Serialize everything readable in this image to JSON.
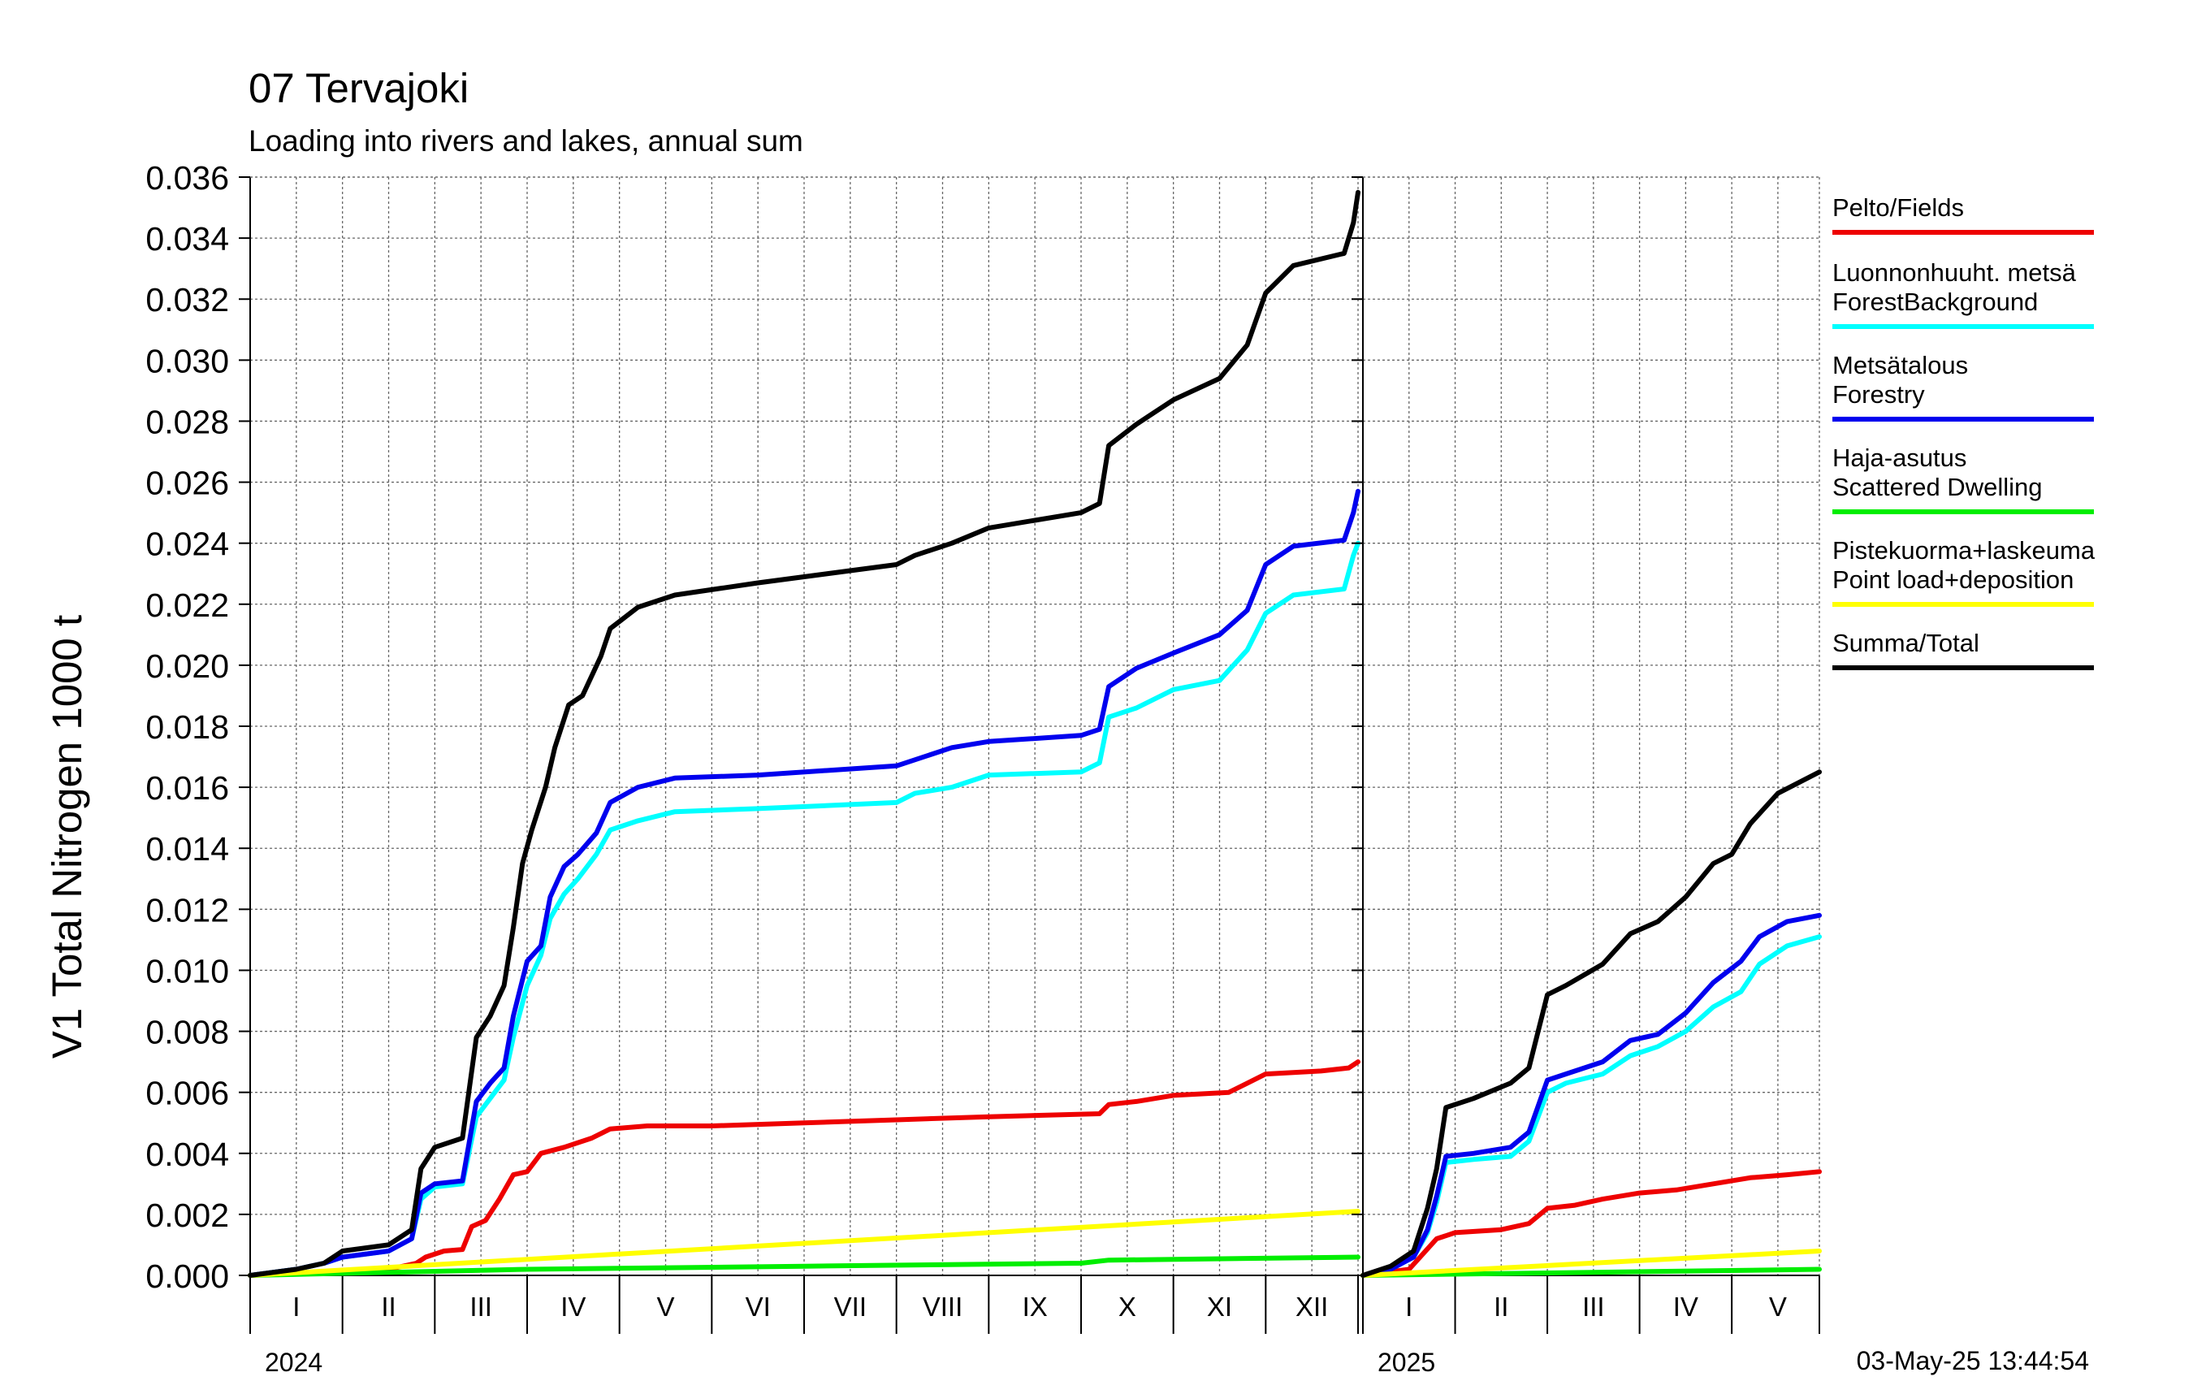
{
  "chart_data": {
    "type": "line",
    "title": "07 Tervajoki",
    "subtitle": "Loading into rivers and lakes, annual sum",
    "ylabel": "V1 Total Nitrogen 1000 t",
    "timestamp": "03-May-25 13:44:54",
    "ylim": [
      0.0,
      0.036
    ],
    "y_ticks": [
      "0.000",
      "0.002",
      "0.004",
      "0.006",
      "0.008",
      "0.010",
      "0.012",
      "0.014",
      "0.016",
      "0.018",
      "0.020",
      "0.022",
      "0.024",
      "0.026",
      "0.028",
      "0.030",
      "0.032",
      "0.034",
      "0.036"
    ],
    "grid": true,
    "legend_position": "right",
    "panels": [
      {
        "year": "2024",
        "months": [
          "I",
          "II",
          "III",
          "IV",
          "V",
          "VI",
          "VII",
          "VIII",
          "IX",
          "X",
          "XI",
          "XII"
        ],
        "x_unit": "month",
        "xlim": [
          0,
          12
        ]
      },
      {
        "year": "2025",
        "months": [
          "I",
          "II",
          "III",
          "IV",
          "V"
        ],
        "x_unit": "month",
        "xlim": [
          0,
          4.95
        ]
      }
    ],
    "series": [
      {
        "name": "Pelto/Fields",
        "color": "#ee0000",
        "data_2024": [
          [
            0,
            0
          ],
          [
            1.5,
            0.0002
          ],
          [
            1.8,
            0.0004
          ],
          [
            1.9,
            0.0006
          ],
          [
            2.1,
            0.0008
          ],
          [
            2.3,
            0.00085
          ],
          [
            2.4,
            0.0016
          ],
          [
            2.55,
            0.0018
          ],
          [
            2.7,
            0.0025
          ],
          [
            2.85,
            0.0033
          ],
          [
            3.0,
            0.0034
          ],
          [
            3.15,
            0.004
          ],
          [
            3.4,
            0.0042
          ],
          [
            3.7,
            0.0045
          ],
          [
            3.9,
            0.0048
          ],
          [
            4.3,
            0.0049
          ],
          [
            5.0,
            0.0049
          ],
          [
            6.0,
            0.005
          ],
          [
            7.0,
            0.0051
          ],
          [
            8.0,
            0.0052
          ],
          [
            9.2,
            0.0053
          ],
          [
            9.3,
            0.0056
          ],
          [
            9.6,
            0.0057
          ],
          [
            10.0,
            0.0059
          ],
          [
            10.6,
            0.006
          ],
          [
            10.8,
            0.0063
          ],
          [
            11.0,
            0.0066
          ],
          [
            11.6,
            0.0067
          ],
          [
            11.9,
            0.0068
          ],
          [
            12.0,
            0.007
          ]
        ],
        "data_2025": [
          [
            0,
            0
          ],
          [
            0.5,
            0.0002
          ],
          [
            0.8,
            0.0012
          ],
          [
            1.0,
            0.0014
          ],
          [
            1.5,
            0.0015
          ],
          [
            1.8,
            0.0017
          ],
          [
            2.0,
            0.0022
          ],
          [
            2.3,
            0.0023
          ],
          [
            2.6,
            0.0025
          ],
          [
            3.0,
            0.0027
          ],
          [
            3.4,
            0.0028
          ],
          [
            3.8,
            0.003
          ],
          [
            4.2,
            0.0032
          ],
          [
            4.6,
            0.0033
          ],
          [
            4.95,
            0.0034
          ]
        ]
      },
      {
        "name": "Luonnonhuuht. metsä ForestBackground",
        "color": "#00ffff",
        "data_2024": [
          [
            0,
            0
          ],
          [
            0.5,
            0.0002
          ],
          [
            0.8,
            0.0004
          ],
          [
            1.0,
            0.0006
          ],
          [
            1.5,
            0.0008
          ],
          [
            1.75,
            0.0012
          ],
          [
            1.85,
            0.0025
          ],
          [
            2.0,
            0.0029
          ],
          [
            2.3,
            0.003
          ],
          [
            2.45,
            0.0052
          ],
          [
            2.6,
            0.0058
          ],
          [
            2.75,
            0.0064
          ],
          [
            2.85,
            0.0078
          ],
          [
            3.0,
            0.0095
          ],
          [
            3.15,
            0.0105
          ],
          [
            3.25,
            0.0117
          ],
          [
            3.4,
            0.0125
          ],
          [
            3.55,
            0.013
          ],
          [
            3.75,
            0.0138
          ],
          [
            3.9,
            0.0146
          ],
          [
            4.2,
            0.0149
          ],
          [
            4.6,
            0.0152
          ],
          [
            5.5,
            0.0153
          ],
          [
            7.0,
            0.0155
          ],
          [
            7.2,
            0.0158
          ],
          [
            7.6,
            0.016
          ],
          [
            8.0,
            0.0164
          ],
          [
            9.0,
            0.0165
          ],
          [
            9.2,
            0.0168
          ],
          [
            9.3,
            0.0183
          ],
          [
            9.6,
            0.0186
          ],
          [
            10.0,
            0.0192
          ],
          [
            10.5,
            0.0195
          ],
          [
            10.8,
            0.0205
          ],
          [
            11.0,
            0.0217
          ],
          [
            11.3,
            0.0223
          ],
          [
            11.85,
            0.0225
          ],
          [
            11.95,
            0.0236
          ],
          [
            12.0,
            0.024
          ]
        ],
        "data_2025": [
          [
            0,
            0
          ],
          [
            0.3,
            0.0002
          ],
          [
            0.55,
            0.0006
          ],
          [
            0.7,
            0.0014
          ],
          [
            0.8,
            0.0024
          ],
          [
            0.9,
            0.0037
          ],
          [
            1.2,
            0.0038
          ],
          [
            1.6,
            0.0039
          ],
          [
            1.8,
            0.0044
          ],
          [
            2.0,
            0.006
          ],
          [
            2.2,
            0.0063
          ],
          [
            2.6,
            0.0066
          ],
          [
            2.9,
            0.0072
          ],
          [
            3.2,
            0.0075
          ],
          [
            3.5,
            0.008
          ],
          [
            3.8,
            0.0088
          ],
          [
            4.1,
            0.0093
          ],
          [
            4.3,
            0.0102
          ],
          [
            4.6,
            0.0108
          ],
          [
            4.95,
            0.0111
          ]
        ]
      },
      {
        "name": "Metsätalous Forestry",
        "color": "#0000ee",
        "data_2024": [
          [
            0,
            0
          ],
          [
            0.5,
            0.0002
          ],
          [
            0.8,
            0.0004
          ],
          [
            1.0,
            0.0006
          ],
          [
            1.5,
            0.0008
          ],
          [
            1.75,
            0.0012
          ],
          [
            1.85,
            0.0027
          ],
          [
            2.0,
            0.003
          ],
          [
            2.3,
            0.0031
          ],
          [
            2.45,
            0.0057
          ],
          [
            2.6,
            0.0063
          ],
          [
            2.75,
            0.0068
          ],
          [
            2.85,
            0.0085
          ],
          [
            3.0,
            0.0103
          ],
          [
            3.15,
            0.0108
          ],
          [
            3.25,
            0.0124
          ],
          [
            3.4,
            0.0134
          ],
          [
            3.55,
            0.0138
          ],
          [
            3.75,
            0.0145
          ],
          [
            3.9,
            0.0155
          ],
          [
            4.2,
            0.016
          ],
          [
            4.6,
            0.0163
          ],
          [
            5.5,
            0.0164
          ],
          [
            7.0,
            0.0167
          ],
          [
            7.2,
            0.0169
          ],
          [
            7.6,
            0.0173
          ],
          [
            8.0,
            0.0175
          ],
          [
            9.0,
            0.0177
          ],
          [
            9.2,
            0.0179
          ],
          [
            9.3,
            0.0193
          ],
          [
            9.6,
            0.0199
          ],
          [
            10.0,
            0.0204
          ],
          [
            10.5,
            0.021
          ],
          [
            10.8,
            0.0218
          ],
          [
            11.0,
            0.0233
          ],
          [
            11.3,
            0.0239
          ],
          [
            11.85,
            0.0241
          ],
          [
            11.95,
            0.025
          ],
          [
            12.0,
            0.0257
          ]
        ],
        "data_2025": [
          [
            0,
            0
          ],
          [
            0.3,
            0.0002
          ],
          [
            0.55,
            0.0006
          ],
          [
            0.7,
            0.0015
          ],
          [
            0.8,
            0.0026
          ],
          [
            0.9,
            0.0039
          ],
          [
            1.2,
            0.004
          ],
          [
            1.6,
            0.0042
          ],
          [
            1.8,
            0.0047
          ],
          [
            2.0,
            0.0064
          ],
          [
            2.2,
            0.0066
          ],
          [
            2.6,
            0.007
          ],
          [
            2.9,
            0.0077
          ],
          [
            3.2,
            0.0079
          ],
          [
            3.5,
            0.0086
          ],
          [
            3.8,
            0.0096
          ],
          [
            4.1,
            0.0103
          ],
          [
            4.3,
            0.0111
          ],
          [
            4.6,
            0.0116
          ],
          [
            4.95,
            0.0118
          ]
        ]
      },
      {
        "name": "Haja-asutus Scattered Dwelling",
        "color": "#00ee00",
        "data_2024": [
          [
            0,
            0
          ],
          [
            3.0,
            0.0002
          ],
          [
            6.0,
            0.0003
          ],
          [
            9.0,
            0.0004
          ],
          [
            9.3,
            0.0005
          ],
          [
            12.0,
            0.0006
          ]
        ],
        "data_2025": [
          [
            0,
            0
          ],
          [
            2.5,
            0.0001
          ],
          [
            4.95,
            0.0002
          ]
        ]
      },
      {
        "name": "Pistekuorma+laskeuma Point load+deposition",
        "color": "#ffff00",
        "data_2024": [
          [
            0,
            0
          ],
          [
            12.0,
            0.0021
          ]
        ],
        "data_2025": [
          [
            0,
            0
          ],
          [
            4.95,
            0.0008
          ]
        ]
      },
      {
        "name": "Summa/Total",
        "color": "#000000",
        "data_2024": [
          [
            0,
            0
          ],
          [
            0.5,
            0.0002
          ],
          [
            0.8,
            0.0004
          ],
          [
            1.0,
            0.0008
          ],
          [
            1.5,
            0.001
          ],
          [
            1.75,
            0.0015
          ],
          [
            1.85,
            0.0035
          ],
          [
            2.0,
            0.0042
          ],
          [
            2.3,
            0.0045
          ],
          [
            2.45,
            0.0078
          ],
          [
            2.6,
            0.0085
          ],
          [
            2.75,
            0.0095
          ],
          [
            2.85,
            0.0114
          ],
          [
            2.95,
            0.0135
          ],
          [
            3.05,
            0.0146
          ],
          [
            3.2,
            0.016
          ],
          [
            3.3,
            0.0173
          ],
          [
            3.45,
            0.0187
          ],
          [
            3.6,
            0.019
          ],
          [
            3.8,
            0.0203
          ],
          [
            3.9,
            0.0212
          ],
          [
            4.2,
            0.0219
          ],
          [
            4.6,
            0.0223
          ],
          [
            5.5,
            0.0227
          ],
          [
            7.0,
            0.0233
          ],
          [
            7.2,
            0.0236
          ],
          [
            7.6,
            0.024
          ],
          [
            8.0,
            0.0245
          ],
          [
            9.0,
            0.025
          ],
          [
            9.2,
            0.0253
          ],
          [
            9.3,
            0.0272
          ],
          [
            9.6,
            0.0279
          ],
          [
            10.0,
            0.0287
          ],
          [
            10.5,
            0.0294
          ],
          [
            10.8,
            0.0305
          ],
          [
            11.0,
            0.0322
          ],
          [
            11.3,
            0.0331
          ],
          [
            11.85,
            0.0335
          ],
          [
            11.95,
            0.0345
          ],
          [
            12.0,
            0.0355
          ]
        ],
        "data_2025": [
          [
            0,
            0
          ],
          [
            0.3,
            0.0003
          ],
          [
            0.55,
            0.0008
          ],
          [
            0.7,
            0.0022
          ],
          [
            0.8,
            0.0035
          ],
          [
            0.9,
            0.0055
          ],
          [
            1.2,
            0.0058
          ],
          [
            1.6,
            0.0063
          ],
          [
            1.8,
            0.0068
          ],
          [
            2.0,
            0.0092
          ],
          [
            2.2,
            0.0095
          ],
          [
            2.6,
            0.0102
          ],
          [
            2.9,
            0.0112
          ],
          [
            3.2,
            0.0116
          ],
          [
            3.5,
            0.0124
          ],
          [
            3.8,
            0.0135
          ],
          [
            4.0,
            0.0138
          ],
          [
            4.2,
            0.0148
          ],
          [
            4.5,
            0.0158
          ],
          [
            4.95,
            0.0165
          ]
        ]
      }
    ]
  }
}
